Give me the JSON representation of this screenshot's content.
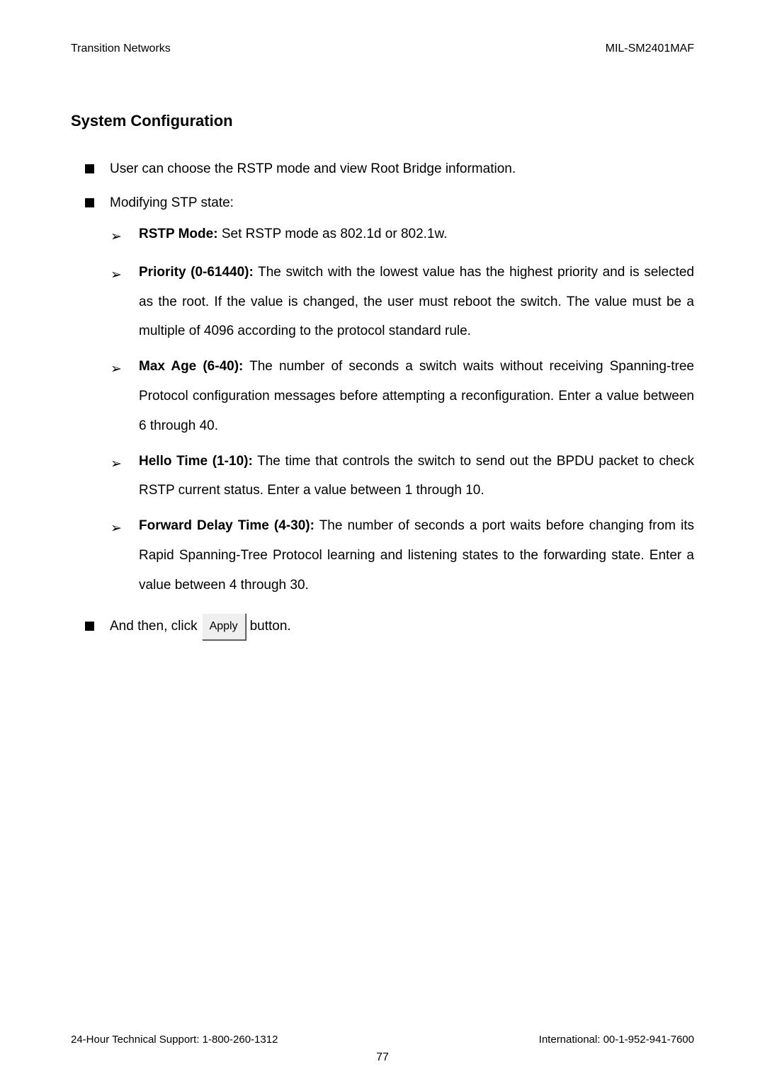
{
  "header": {
    "left": "Transition Networks",
    "right": "MIL-SM2401MAF"
  },
  "section_title": "System Configuration",
  "top_items": [
    {
      "text": "User can choose the RSTP mode and view Root Bridge information."
    },
    {
      "text": "Modifying STP state:"
    }
  ],
  "sub_items": [
    {
      "bold": "RSTP Mode:",
      "rest": " Set RSTP mode as 802.1d or 802.1w."
    },
    {
      "bold": "Priority (0-61440):",
      "rest": " The switch with the lowest value has the highest priority and is selected as the root. If the value is changed, the user must reboot the switch. The value must be a multiple of 4096 according to the protocol standard rule."
    },
    {
      "bold": "Max Age (6-40):",
      "rest": " The number of seconds a switch waits without receiving Spanning-tree Protocol configuration messages before attempting a reconfiguration. Enter a value between 6 through 40."
    },
    {
      "bold": "Hello Time (1-10):",
      "rest": " The time that controls the switch to send out the BPDU packet to check RSTP current status. Enter a value between 1 through 10."
    },
    {
      "bold": "Forward Delay Time (4-30):",
      "rest": " The number of seconds a port waits before changing from its Rapid Spanning-Tree Protocol learning and listening states to the forwarding state. Enter a value between 4 through 30."
    }
  ],
  "last_item": {
    "before": "And then, click",
    "button": "Apply",
    "after": "button."
  },
  "footer": {
    "left": "24-Hour Technical Support: 1-800-260-1312",
    "right": "International: 00-1-952-941-7600",
    "page": "77"
  },
  "colors": {
    "background": "#ffffff",
    "text": "#000000",
    "button_bg": "#efefef"
  }
}
